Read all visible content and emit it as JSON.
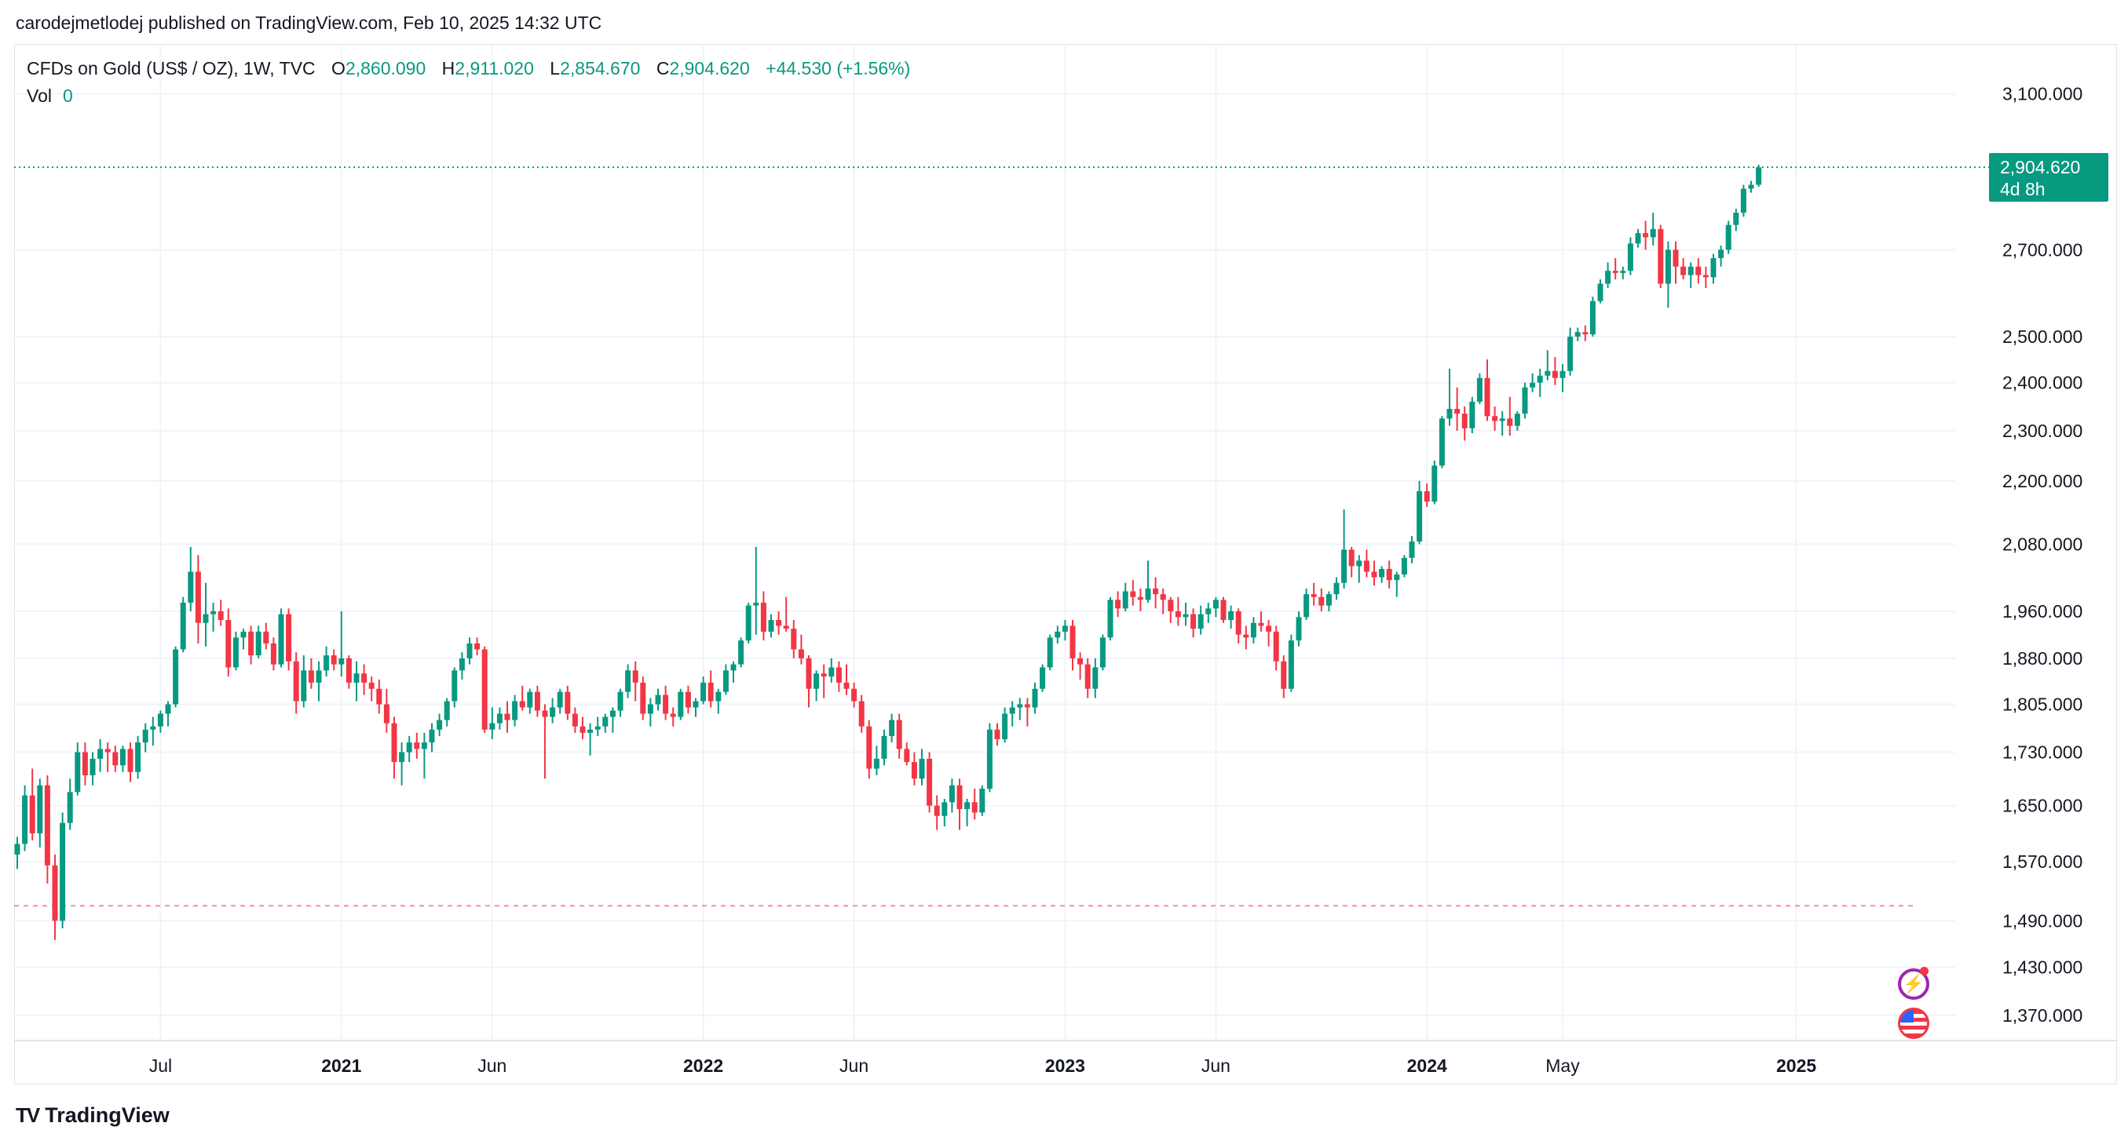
{
  "header": {
    "publish_line": "carodejmetlodej published on TradingView.com, Feb 10, 2025 14:32 UTC"
  },
  "legend": {
    "symbol": "CFDs on Gold (US$ / OZ), 1W, TVC",
    "open_label": "O",
    "open": "2,860.090",
    "high_label": "H",
    "high": "2,911.020",
    "low_label": "L",
    "low": "2,854.670",
    "close_label": "C",
    "close": "2,904.620",
    "change": "+44.530 (+1.56%)",
    "vol_label": "Vol",
    "vol": "0"
  },
  "price_tag": {
    "price": "2,904.620",
    "countdown": "4d 8h"
  },
  "branding": {
    "logo_text": "TV",
    "name": "TradingView"
  },
  "colors": {
    "up": "#089981",
    "down": "#f23645",
    "grid": "#f0f3fa",
    "axis_text": "#131722"
  },
  "icons": [
    "lightning-event-icon",
    "us-flag-event-icon"
  ],
  "chart_data": {
    "type": "candlestick",
    "title": "CFDs on Gold (US$ / OZ), 1W, TVC",
    "scale": "log",
    "ylim": [
      1340,
      3240
    ],
    "y_ticks": [
      {
        "value": 3100,
        "label": "3,100.000"
      },
      {
        "value": 2700,
        "label": "2,700.000"
      },
      {
        "value": 2500,
        "label": "2,500.000"
      },
      {
        "value": 2400,
        "label": "2,400.000"
      },
      {
        "value": 2300,
        "label": "2,300.000"
      },
      {
        "value": 2200,
        "label": "2,200.000"
      },
      {
        "value": 2080,
        "label": "2,080.000"
      },
      {
        "value": 1960,
        "label": "1,960.000"
      },
      {
        "value": 1880,
        "label": "1,880.000"
      },
      {
        "value": 1805,
        "label": "1,805.000"
      },
      {
        "value": 1730,
        "label": "1,730.000"
      },
      {
        "value": 1650,
        "label": "1,650.000"
      },
      {
        "value": 1570,
        "label": "1,570.000"
      },
      {
        "value": 1490,
        "label": "1,490.000"
      },
      {
        "value": 1430,
        "label": "1,430.000"
      },
      {
        "value": 1370,
        "label": "1,370.000"
      }
    ],
    "x_ticks": [
      {
        "index": 19,
        "label": "Jul",
        "bold": false
      },
      {
        "index": 43,
        "label": "2021",
        "bold": true
      },
      {
        "index": 63,
        "label": "Jun",
        "bold": false
      },
      {
        "index": 91,
        "label": "2022",
        "bold": true
      },
      {
        "index": 111,
        "label": "Jun",
        "bold": false
      },
      {
        "index": 139,
        "label": "2023",
        "bold": true
      },
      {
        "index": 159,
        "label": "Jun",
        "bold": false
      },
      {
        "index": 187,
        "label": "2024",
        "bold": true
      },
      {
        "index": 205,
        "label": "May",
        "bold": false
      },
      {
        "index": 236,
        "label": "2025",
        "bold": true
      }
    ],
    "last_price": 2904.62,
    "reference_price": 1510,
    "candles_ohlc": [
      [
        1580,
        1605,
        1560,
        1595
      ],
      [
        1595,
        1680,
        1585,
        1665
      ],
      [
        1665,
        1705,
        1600,
        1610
      ],
      [
        1610,
        1690,
        1590,
        1680
      ],
      [
        1680,
        1695,
        1540,
        1565
      ],
      [
        1565,
        1580,
        1465,
        1490
      ],
      [
        1490,
        1640,
        1480,
        1625
      ],
      [
        1625,
        1690,
        1615,
        1670
      ],
      [
        1670,
        1745,
        1665,
        1730
      ],
      [
        1730,
        1745,
        1680,
        1695
      ],
      [
        1695,
        1730,
        1680,
        1720
      ],
      [
        1720,
        1750,
        1700,
        1735
      ],
      [
        1735,
        1745,
        1700,
        1730
      ],
      [
        1730,
        1740,
        1700,
        1710
      ],
      [
        1710,
        1740,
        1700,
        1735
      ],
      [
        1735,
        1745,
        1685,
        1700
      ],
      [
        1700,
        1755,
        1690,
        1745
      ],
      [
        1745,
        1775,
        1730,
        1765
      ],
      [
        1765,
        1785,
        1740,
        1770
      ],
      [
        1770,
        1795,
        1760,
        1790
      ],
      [
        1790,
        1810,
        1770,
        1805
      ],
      [
        1805,
        1900,
        1800,
        1895
      ],
      [
        1895,
        1985,
        1890,
        1975
      ],
      [
        1975,
        2075,
        1960,
        2030
      ],
      [
        2030,
        2060,
        1905,
        1940
      ],
      [
        1940,
        2010,
        1900,
        1955
      ],
      [
        1955,
        1975,
        1925,
        1960
      ],
      [
        1960,
        1980,
        1935,
        1945
      ],
      [
        1945,
        1965,
        1850,
        1865
      ],
      [
        1865,
        1925,
        1860,
        1915
      ],
      [
        1915,
        1930,
        1895,
        1925
      ],
      [
        1925,
        1935,
        1870,
        1885
      ],
      [
        1885,
        1935,
        1880,
        1925
      ],
      [
        1925,
        1940,
        1895,
        1905
      ],
      [
        1905,
        1915,
        1860,
        1870
      ],
      [
        1870,
        1965,
        1865,
        1955
      ],
      [
        1955,
        1965,
        1860,
        1875
      ],
      [
        1875,
        1890,
        1790,
        1810
      ],
      [
        1810,
        1885,
        1800,
        1860
      ],
      [
        1860,
        1880,
        1830,
        1840
      ],
      [
        1840,
        1875,
        1810,
        1860
      ],
      [
        1860,
        1900,
        1850,
        1885
      ],
      [
        1885,
        1895,
        1860,
        1870
      ],
      [
        1870,
        1960,
        1850,
        1880
      ],
      [
        1880,
        1885,
        1830,
        1840
      ],
      [
        1840,
        1875,
        1810,
        1855
      ],
      [
        1855,
        1870,
        1820,
        1840
      ],
      [
        1840,
        1850,
        1810,
        1830
      ],
      [
        1830,
        1845,
        1790,
        1805
      ],
      [
        1805,
        1830,
        1760,
        1775
      ],
      [
        1775,
        1785,
        1690,
        1715
      ],
      [
        1715,
        1745,
        1680,
        1730
      ],
      [
        1730,
        1755,
        1715,
        1745
      ],
      [
        1745,
        1760,
        1720,
        1735
      ],
      [
        1735,
        1760,
        1690,
        1745
      ],
      [
        1745,
        1775,
        1730,
        1765
      ],
      [
        1765,
        1790,
        1755,
        1780
      ],
      [
        1780,
        1815,
        1770,
        1810
      ],
      [
        1810,
        1865,
        1800,
        1860
      ],
      [
        1860,
        1890,
        1845,
        1880
      ],
      [
        1880,
        1915,
        1870,
        1905
      ],
      [
        1905,
        1915,
        1885,
        1895
      ],
      [
        1895,
        1900,
        1760,
        1765
      ],
      [
        1765,
        1800,
        1750,
        1775
      ],
      [
        1775,
        1800,
        1765,
        1790
      ],
      [
        1790,
        1810,
        1760,
        1780
      ],
      [
        1780,
        1820,
        1770,
        1810
      ],
      [
        1810,
        1835,
        1795,
        1800
      ],
      [
        1800,
        1830,
        1790,
        1825
      ],
      [
        1825,
        1835,
        1785,
        1795
      ],
      [
        1795,
        1805,
        1690,
        1785
      ],
      [
        1785,
        1815,
        1775,
        1800
      ],
      [
        1800,
        1830,
        1790,
        1825
      ],
      [
        1825,
        1835,
        1780,
        1790
      ],
      [
        1790,
        1800,
        1760,
        1770
      ],
      [
        1770,
        1785,
        1750,
        1760
      ],
      [
        1760,
        1775,
        1725,
        1765
      ],
      [
        1765,
        1785,
        1755,
        1770
      ],
      [
        1770,
        1790,
        1760,
        1785
      ],
      [
        1785,
        1800,
        1760,
        1795
      ],
      [
        1795,
        1830,
        1785,
        1825
      ],
      [
        1825,
        1870,
        1815,
        1860
      ],
      [
        1860,
        1875,
        1810,
        1840
      ],
      [
        1840,
        1850,
        1780,
        1790
      ],
      [
        1790,
        1815,
        1770,
        1805
      ],
      [
        1805,
        1830,
        1795,
        1820
      ],
      [
        1820,
        1835,
        1780,
        1790
      ],
      [
        1790,
        1800,
        1770,
        1785
      ],
      [
        1785,
        1830,
        1780,
        1825
      ],
      [
        1825,
        1835,
        1790,
        1800
      ],
      [
        1800,
        1815,
        1785,
        1810
      ],
      [
        1810,
        1850,
        1805,
        1840
      ],
      [
        1840,
        1860,
        1800,
        1810
      ],
      [
        1810,
        1830,
        1790,
        1825
      ],
      [
        1825,
        1870,
        1820,
        1860
      ],
      [
        1860,
        1875,
        1840,
        1870
      ],
      [
        1870,
        1915,
        1865,
        1910
      ],
      [
        1910,
        1975,
        1905,
        1970
      ],
      [
        1970,
        2075,
        1920,
        1975
      ],
      [
        1975,
        1995,
        1910,
        1925
      ],
      [
        1925,
        1955,
        1915,
        1945
      ],
      [
        1945,
        1960,
        1920,
        1935
      ],
      [
        1935,
        1985,
        1925,
        1930
      ],
      [
        1930,
        1945,
        1880,
        1895
      ],
      [
        1895,
        1920,
        1870,
        1880
      ],
      [
        1880,
        1885,
        1800,
        1830
      ],
      [
        1830,
        1860,
        1810,
        1855
      ],
      [
        1855,
        1870,
        1815,
        1850
      ],
      [
        1850,
        1880,
        1840,
        1865
      ],
      [
        1865,
        1875,
        1825,
        1840
      ],
      [
        1840,
        1870,
        1820,
        1830
      ],
      [
        1830,
        1840,
        1800,
        1810
      ],
      [
        1810,
        1820,
        1760,
        1770
      ],
      [
        1770,
        1780,
        1690,
        1705
      ],
      [
        1705,
        1740,
        1695,
        1720
      ],
      [
        1720,
        1765,
        1710,
        1755
      ],
      [
        1755,
        1790,
        1745,
        1780
      ],
      [
        1780,
        1790,
        1720,
        1735
      ],
      [
        1735,
        1745,
        1710,
        1715
      ],
      [
        1715,
        1730,
        1680,
        1690
      ],
      [
        1690,
        1735,
        1680,
        1720
      ],
      [
        1720,
        1730,
        1640,
        1650
      ],
      [
        1650,
        1665,
        1615,
        1635
      ],
      [
        1635,
        1660,
        1620,
        1655
      ],
      [
        1655,
        1690,
        1640,
        1680
      ],
      [
        1680,
        1690,
        1615,
        1645
      ],
      [
        1645,
        1660,
        1620,
        1655
      ],
      [
        1655,
        1675,
        1630,
        1640
      ],
      [
        1640,
        1680,
        1635,
        1675
      ],
      [
        1675,
        1775,
        1670,
        1765
      ],
      [
        1765,
        1775,
        1740,
        1750
      ],
      [
        1750,
        1800,
        1745,
        1790
      ],
      [
        1790,
        1810,
        1770,
        1800
      ],
      [
        1800,
        1815,
        1780,
        1805
      ],
      [
        1805,
        1815,
        1770,
        1800
      ],
      [
        1800,
        1840,
        1790,
        1830
      ],
      [
        1830,
        1870,
        1825,
        1865
      ],
      [
        1865,
        1920,
        1860,
        1915
      ],
      [
        1915,
        1935,
        1905,
        1925
      ],
      [
        1925,
        1945,
        1910,
        1935
      ],
      [
        1935,
        1945,
        1860,
        1880
      ],
      [
        1880,
        1890,
        1845,
        1870
      ],
      [
        1870,
        1880,
        1815,
        1830
      ],
      [
        1830,
        1880,
        1815,
        1865
      ],
      [
        1865,
        1920,
        1860,
        1915
      ],
      [
        1915,
        1985,
        1910,
        1980
      ],
      [
        1980,
        1995,
        1950,
        1965
      ],
      [
        1965,
        2010,
        1960,
        1995
      ],
      [
        1995,
        2015,
        1970,
        1985
      ],
      [
        1985,
        2000,
        1960,
        1980
      ],
      [
        1980,
        2050,
        1975,
        2000
      ],
      [
        2000,
        2020,
        1965,
        1990
      ],
      [
        1990,
        2000,
        1955,
        1980
      ],
      [
        1980,
        1985,
        1940,
        1960
      ],
      [
        1960,
        1985,
        1935,
        1950
      ],
      [
        1950,
        1975,
        1935,
        1955
      ],
      [
        1955,
        1965,
        1915,
        1930
      ],
      [
        1930,
        1970,
        1920,
        1955
      ],
      [
        1955,
        1975,
        1940,
        1965
      ],
      [
        1965,
        1985,
        1950,
        1980
      ],
      [
        1980,
        1985,
        1940,
        1945
      ],
      [
        1945,
        1970,
        1930,
        1960
      ],
      [
        1960,
        1965,
        1905,
        1920
      ],
      [
        1920,
        1935,
        1895,
        1915
      ],
      [
        1915,
        1950,
        1905,
        1940
      ],
      [
        1940,
        1960,
        1925,
        1935
      ],
      [
        1935,
        1945,
        1900,
        1925
      ],
      [
        1925,
        1935,
        1860,
        1875
      ],
      [
        1875,
        1885,
        1815,
        1830
      ],
      [
        1830,
        1920,
        1825,
        1910
      ],
      [
        1910,
        1960,
        1900,
        1950
      ],
      [
        1950,
        2000,
        1945,
        1990
      ],
      [
        1990,
        2010,
        1970,
        1985
      ],
      [
        1985,
        2000,
        1960,
        1970
      ],
      [
        1970,
        1995,
        1960,
        1990
      ],
      [
        1990,
        2020,
        1980,
        2010
      ],
      [
        2010,
        2145,
        2000,
        2070
      ],
      [
        2070,
        2075,
        2020,
        2040
      ],
      [
        2040,
        2060,
        2010,
        2050
      ],
      [
        2050,
        2070,
        2020,
        2030
      ],
      [
        2030,
        2050,
        2005,
        2020
      ],
      [
        2020,
        2040,
        2010,
        2035
      ],
      [
        2035,
        2050,
        2000,
        2015
      ],
      [
        2015,
        2030,
        1985,
        2025
      ],
      [
        2025,
        2060,
        2020,
        2055
      ],
      [
        2055,
        2095,
        2045,
        2085
      ],
      [
        2085,
        2200,
        2080,
        2180
      ],
      [
        2180,
        2195,
        2150,
        2160
      ],
      [
        2160,
        2240,
        2155,
        2230
      ],
      [
        2230,
        2330,
        2225,
        2325
      ],
      [
        2325,
        2430,
        2310,
        2345
      ],
      [
        2345,
        2390,
        2300,
        2335
      ],
      [
        2335,
        2350,
        2280,
        2305
      ],
      [
        2305,
        2370,
        2295,
        2360
      ],
      [
        2360,
        2420,
        2355,
        2410
      ],
      [
        2410,
        2450,
        2320,
        2330
      ],
      [
        2330,
        2350,
        2300,
        2320
      ],
      [
        2320,
        2340,
        2290,
        2325
      ],
      [
        2325,
        2370,
        2290,
        2310
      ],
      [
        2310,
        2340,
        2300,
        2335
      ],
      [
        2335,
        2400,
        2325,
        2390
      ],
      [
        2390,
        2420,
        2380,
        2400
      ],
      [
        2400,
        2430,
        2370,
        2415
      ],
      [
        2415,
        2470,
        2405,
        2425
      ],
      [
        2425,
        2455,
        2395,
        2410
      ],
      [
        2410,
        2440,
        2380,
        2425
      ],
      [
        2425,
        2520,
        2415,
        2500
      ],
      [
        2500,
        2520,
        2490,
        2510
      ],
      [
        2510,
        2525,
        2490,
        2505
      ],
      [
        2505,
        2590,
        2500,
        2580
      ],
      [
        2580,
        2630,
        2575,
        2620
      ],
      [
        2620,
        2670,
        2610,
        2650
      ],
      [
        2650,
        2680,
        2630,
        2645
      ],
      [
        2645,
        2660,
        2630,
        2650
      ],
      [
        2650,
        2730,
        2640,
        2715
      ],
      [
        2715,
        2750,
        2705,
        2740
      ],
      [
        2740,
        2770,
        2700,
        2730
      ],
      [
        2730,
        2790,
        2710,
        2750
      ],
      [
        2750,
        2760,
        2610,
        2620
      ],
      [
        2620,
        2720,
        2565,
        2700
      ],
      [
        2700,
        2720,
        2620,
        2660
      ],
      [
        2660,
        2680,
        2630,
        2640
      ],
      [
        2640,
        2670,
        2610,
        2660
      ],
      [
        2660,
        2680,
        2620,
        2640
      ],
      [
        2640,
        2660,
        2610,
        2635
      ],
      [
        2635,
        2690,
        2620,
        2680
      ],
      [
        2680,
        2710,
        2660,
        2700
      ],
      [
        2700,
        2770,
        2690,
        2760
      ],
      [
        2760,
        2800,
        2745,
        2790
      ],
      [
        2790,
        2860,
        2780,
        2850
      ],
      [
        2850,
        2870,
        2840,
        2860
      ],
      [
        2860,
        2911.02,
        2854.67,
        2904.62
      ]
    ]
  }
}
